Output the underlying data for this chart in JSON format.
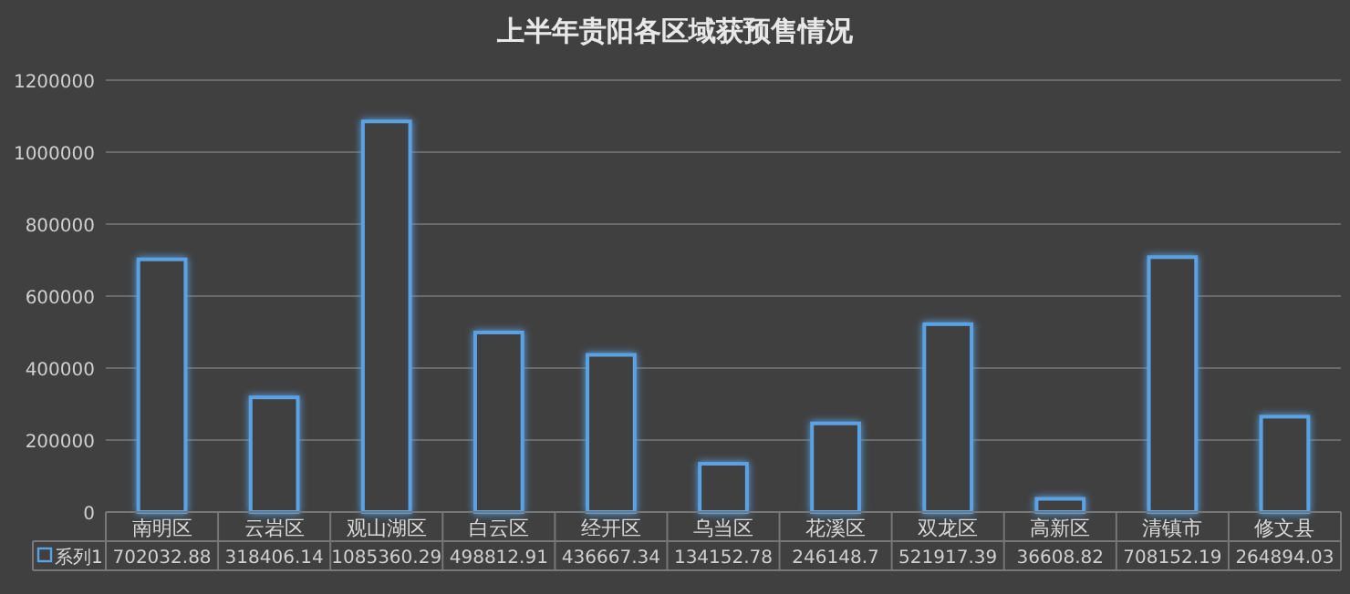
{
  "chart_data": {
    "type": "bar",
    "title": "上半年贵阳各区域获预售情况",
    "categories": [
      "南明区",
      "云岩区",
      "观山湖区",
      "白云区",
      "经开区",
      "乌当区",
      "花溪区",
      "双龙区",
      "高新区",
      "清镇市",
      "修文县"
    ],
    "series": [
      {
        "name": "系列1",
        "color": "#5aa2e4",
        "values": [
          702032.88,
          318406.14,
          1085360.29,
          498812.91,
          436667.34,
          134152.78,
          246148.7,
          521917.39,
          36608.82,
          708152.19,
          264894.03
        ]
      }
    ],
    "ylim": [
      0,
      1200000
    ],
    "yticks": [
      0,
      200000,
      400000,
      600000,
      800000,
      1000000,
      1200000
    ],
    "grid": "y",
    "legend": "bottom",
    "data_labels": true
  }
}
